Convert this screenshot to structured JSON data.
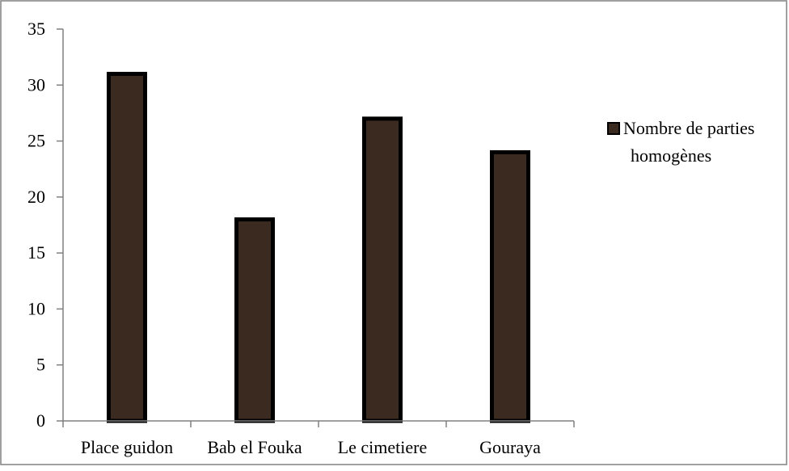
{
  "chart_data": {
    "type": "bar",
    "categories": [
      "Place guidon",
      "Bab el Fouka",
      "Le cimetiere",
      "Gouraya"
    ],
    "series": [
      {
        "name": "Nombre de parties homogènes",
        "values": [
          31,
          18,
          27,
          24
        ],
        "color": "#3b2a1f"
      }
    ],
    "legend": {
      "placement": "right",
      "lines": [
        "Nombre de parties",
        "homogènes"
      ]
    },
    "y_ticks": [
      "0",
      "5",
      "10",
      "15",
      "20",
      "25",
      "30",
      "35"
    ],
    "ylim": [
      0,
      35
    ],
    "grid": false,
    "title": "",
    "xlabel": "",
    "ylabel": "",
    "bar_outline_color": "#000000",
    "axis_color": "#808080",
    "frame_color": "#808080"
  }
}
